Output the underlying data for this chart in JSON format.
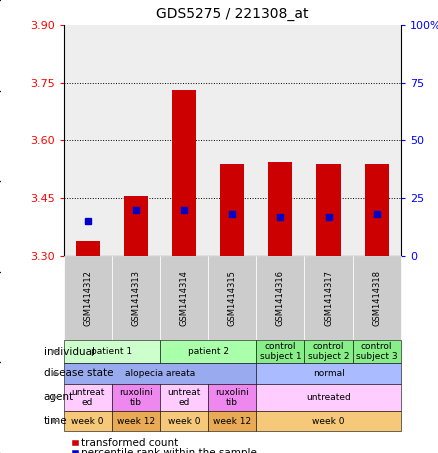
{
  "title": "GDS5275 / 221308_at",
  "samples": [
    "GSM1414312",
    "GSM1414313",
    "GSM1414314",
    "GSM1414315",
    "GSM1414316",
    "GSM1414317",
    "GSM1414318"
  ],
  "transformed_counts": [
    3.34,
    3.455,
    3.73,
    3.54,
    3.545,
    3.54,
    3.54
  ],
  "percentile_ranks": [
    15,
    20,
    20,
    18,
    17,
    17,
    18
  ],
  "ylim_left": [
    3.3,
    3.9
  ],
  "yticks_left": [
    3.3,
    3.45,
    3.6,
    3.75,
    3.9
  ],
  "yticks_right": [
    0,
    25,
    50,
    75,
    100
  ],
  "bar_color": "#cc0000",
  "dot_color": "#0000cc",
  "bar_base": 3.3,
  "annotations": {
    "individual": {
      "label": "individual",
      "groups": [
        {
          "text": "patient 1",
          "cols": [
            0,
            1
          ],
          "color": "#ccffcc"
        },
        {
          "text": "patient 2",
          "cols": [
            2,
            3
          ],
          "color": "#aaffaa"
        },
        {
          "text": "control\nsubject 1",
          "cols": [
            4
          ],
          "color": "#88ee88"
        },
        {
          "text": "control\nsubject 2",
          "cols": [
            5
          ],
          "color": "#88ee88"
        },
        {
          "text": "control\nsubject 3",
          "cols": [
            6
          ],
          "color": "#88ee88"
        }
      ]
    },
    "disease_state": {
      "label": "disease state",
      "groups": [
        {
          "text": "alopecia areata",
          "cols": [
            0,
            1,
            2,
            3
          ],
          "color": "#99aaee"
        },
        {
          "text": "normal",
          "cols": [
            4,
            5,
            6
          ],
          "color": "#aabbff"
        }
      ]
    },
    "agent": {
      "label": "agent",
      "groups": [
        {
          "text": "untreat\ned",
          "cols": [
            0
          ],
          "color": "#ffccff"
        },
        {
          "text": "ruxolini\ntib",
          "cols": [
            1
          ],
          "color": "#ee88ee"
        },
        {
          "text": "untreat\ned",
          "cols": [
            2
          ],
          "color": "#ffccff"
        },
        {
          "text": "ruxolini\ntib",
          "cols": [
            3
          ],
          "color": "#ee88ee"
        },
        {
          "text": "untreated",
          "cols": [
            4,
            5,
            6
          ],
          "color": "#ffccff"
        }
      ]
    },
    "time": {
      "label": "time",
      "groups": [
        {
          "text": "week 0",
          "cols": [
            0
          ],
          "color": "#f5c87a"
        },
        {
          "text": "week 12",
          "cols": [
            1
          ],
          "color": "#e8aa55"
        },
        {
          "text": "week 0",
          "cols": [
            2
          ],
          "color": "#f5c87a"
        },
        {
          "text": "week 12",
          "cols": [
            3
          ],
          "color": "#e8aa55"
        },
        {
          "text": "week 0",
          "cols": [
            4,
            5,
            6
          ],
          "color": "#f5c87a"
        }
      ]
    }
  },
  "annot_keys": [
    "individual",
    "disease_state",
    "agent",
    "time"
  ],
  "annot_labels": [
    "individual",
    "disease state",
    "agent",
    "time"
  ],
  "background_color": "#ffffff",
  "plot_bg_color": "#eeeeee",
  "sample_label_color": "#cccccc"
}
